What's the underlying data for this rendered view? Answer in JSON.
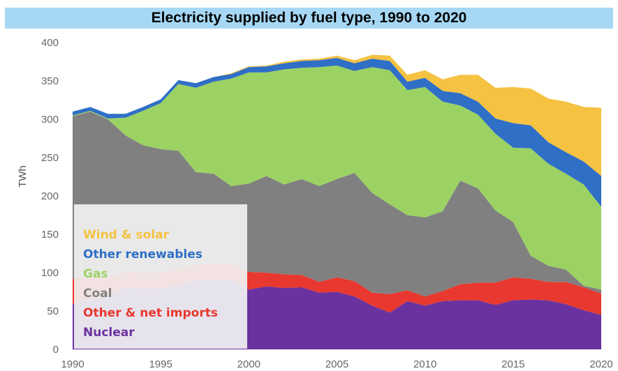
{
  "chart_data": {
    "type": "area",
    "stacked": true,
    "title": "Electricity supplied by fuel type, 1990 to 2020",
    "ylabel": "TWh",
    "xlabel": "",
    "xlim": [
      1990,
      2020
    ],
    "ylim": [
      0,
      400
    ],
    "x_ticks": [
      1990,
      1995,
      2000,
      2005,
      2010,
      2015,
      2020
    ],
    "y_ticks": [
      0,
      50,
      100,
      150,
      200,
      250,
      300,
      350,
      400
    ],
    "grid": false,
    "legend_position": "bottom-left",
    "x": [
      1990,
      1991,
      1992,
      1993,
      1994,
      1995,
      1996,
      1997,
      1998,
      1999,
      2000,
      2001,
      2002,
      2003,
      2004,
      2005,
      2006,
      2007,
      2008,
      2009,
      2010,
      2011,
      2012,
      2013,
      2014,
      2015,
      2016,
      2017,
      2018,
      2019,
      2020
    ],
    "series": [
      {
        "name": "Nuclear",
        "color": "#6a329f",
        "values": [
          59,
          66,
          69,
          81,
          80,
          80,
          83,
          91,
          91,
          91,
          78,
          82,
          80,
          81,
          74,
          75,
          69,
          57,
          48,
          63,
          57,
          63,
          64,
          64,
          58,
          64,
          65,
          64,
          59,
          51,
          45
        ]
      },
      {
        "name": "Other & net imports",
        "color": "#e8382f",
        "values": [
          33,
          30,
          25,
          20,
          20,
          20,
          21,
          20,
          20,
          20,
          23,
          18,
          18,
          16,
          14,
          19,
          20,
          17,
          24,
          14,
          12,
          13,
          21,
          23,
          29,
          30,
          27,
          24,
          29,
          30,
          28
        ]
      },
      {
        "name": "Coal",
        "color": "#808080",
        "values": [
          212,
          214,
          206,
          178,
          166,
          161,
          155,
          120,
          118,
          102,
          115,
          126,
          117,
          125,
          125,
          128,
          141,
          130,
          117,
          98,
          103,
          104,
          135,
          123,
          94,
          72,
          30,
          21,
          16,
          2,
          5
        ]
      },
      {
        "name": "Gas",
        "color": "#9cd263",
        "values": [
          1,
          1,
          1,
          23,
          45,
          60,
          87,
          110,
          120,
          140,
          145,
          135,
          150,
          145,
          155,
          148,
          133,
          164,
          175,
          163,
          170,
          143,
          98,
          96,
          100,
          97,
          140,
          133,
          125,
          132,
          108
        ]
      },
      {
        "name": "Other renewables",
        "color": "#2f6fc6",
        "values": [
          5,
          5,
          6,
          5,
          5,
          5,
          5,
          6,
          6,
          6,
          7,
          8,
          8,
          9,
          9,
          10,
          10,
          11,
          12,
          11,
          12,
          14,
          16,
          17,
          20,
          32,
          30,
          28,
          28,
          30,
          40
        ]
      },
      {
        "name": "Wind & solar",
        "color": "#f5c242",
        "values": [
          0,
          0,
          0,
          0,
          0,
          0,
          0,
          0,
          0,
          1,
          1,
          1,
          2,
          2,
          2,
          3,
          4,
          5,
          7,
          9,
          10,
          15,
          24,
          35,
          40,
          47,
          48,
          57,
          66,
          71,
          89
        ]
      }
    ]
  },
  "legend_order": [
    "Wind & solar",
    "Other renewables",
    "Gas",
    "Coal",
    "Other & net imports",
    "Nuclear"
  ]
}
